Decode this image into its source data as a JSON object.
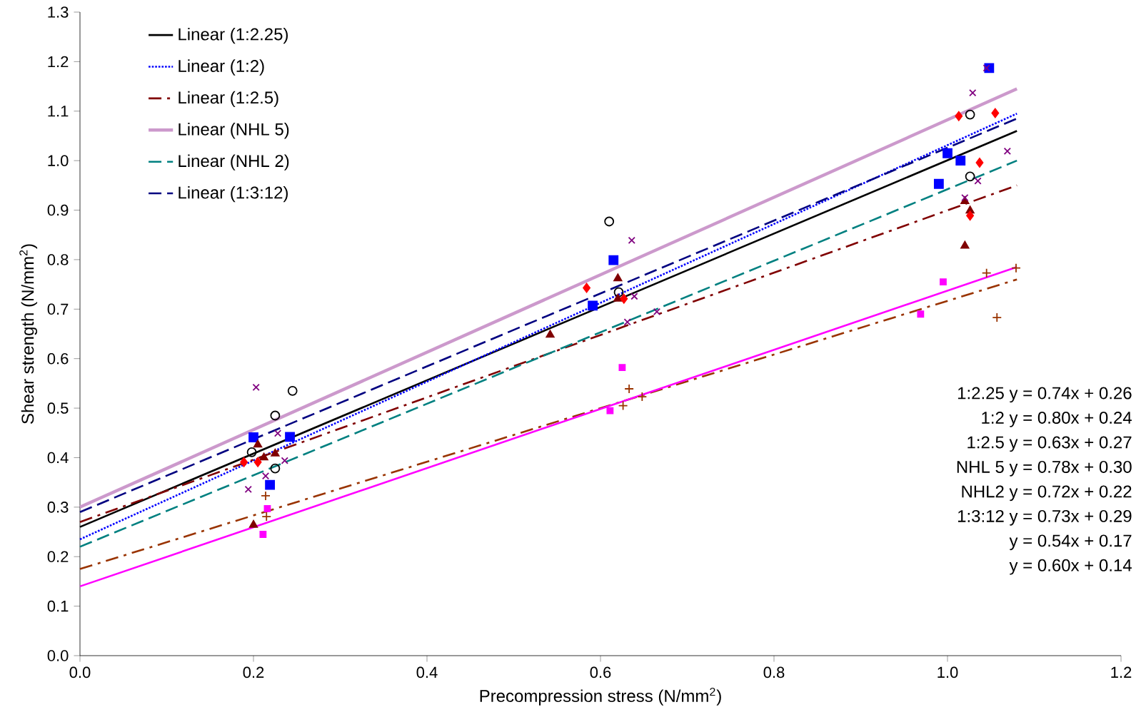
{
  "chart_data": {
    "type": "scatter",
    "xlabel": "Precompression stress (N/mm$^{2}$)",
    "ylabel": "Shear strength (N/mm$^{2}$)",
    "xlim": [
      0,
      1.2
    ],
    "ylim": [
      0,
      1.3
    ],
    "xticks": [
      {
        "value": 0,
        "label": "0.0"
      },
      0.2,
      0.4,
      0.6,
      0.8,
      {
        "value": 1,
        "label": "1.0"
      },
      1.2
    ],
    "yticks": [
      {
        "value": 0,
        "label": "0.0"
      },
      0.1,
      0.2,
      0.3,
      0.4,
      0.5,
      0.6,
      0.7,
      0.8,
      0.9,
      {
        "value": 1,
        "label": "1.0"
      },
      1.1,
      1.2,
      1.3
    ],
    "grid": false,
    "legend": "top left",
    "series": [
      {
        "type": "scatter",
        "color": "#000000",
        "marker": "circle",
        "x": [
          0.198,
          0.245,
          0.225,
          0.225,
          0.61,
          0.621,
          1.026,
          1.026
        ],
        "values": [
          0.411,
          0.535,
          0.485,
          0.378,
          0.877,
          0.734,
          1.093,
          0.968
        ]
      },
      {
        "type": "scatter",
        "color": "#0000ff",
        "marker": "square",
        "x": [
          0.2,
          0.242,
          0.219,
          0.615,
          0.591,
          0.99,
          1.0,
          1.015,
          1.048
        ],
        "values": [
          0.441,
          0.442,
          0.345,
          0.799,
          0.707,
          0.953,
          1.015,
          1.0,
          1.187
        ]
      },
      {
        "type": "scatter",
        "color": "#800000",
        "marker": "triangle",
        "x": [
          0.205,
          0.225,
          0.212,
          0.2,
          0.542,
          0.62,
          0.62,
          1.02,
          1.02,
          1.026
        ],
        "values": [
          0.426,
          0.408,
          0.4,
          0.264,
          0.648,
          0.762,
          0.721,
          0.918,
          0.828,
          0.899
        ]
      },
      {
        "type": "scatter",
        "color": "#ff0000",
        "marker": "diamond",
        "x": [
          0.189,
          0.205,
          0.584,
          0.627,
          1.013,
          1.055,
          1.037,
          1.026
        ],
        "values": [
          0.391,
          0.391,
          0.743,
          0.721,
          1.09,
          1.096,
          0.996,
          0.889
        ]
      },
      {
        "type": "scatter",
        "color": "#800080",
        "marker": "cross",
        "x": [
          0.203,
          0.228,
          0.636,
          0.639,
          1.029,
          1.045
        ],
        "values": [
          0.542,
          0.449,
          0.839,
          0.726,
          1.137,
          1.187
        ]
      },
      {
        "type": "scatter",
        "color": "#800080",
        "marker": "cross",
        "x": [
          0.194,
          0.214,
          0.236,
          0.631,
          0.665,
          1.035,
          1.02,
          1.069
        ],
        "values": [
          0.336,
          0.363,
          0.394,
          0.674,
          0.695,
          0.959,
          0.925,
          1.019
        ]
      },
      {
        "type": "scatter",
        "color": "#993300",
        "marker": "plus",
        "x": [
          0.214,
          0.215,
          0.626,
          0.633,
          0.648,
          1.045,
          1.057,
          1.079
        ],
        "values": [
          0.323,
          0.281,
          0.505,
          0.539,
          0.523,
          0.773,
          0.683,
          0.783
        ]
      },
      {
        "type": "scatter",
        "color": "#ff00ff",
        "marker": "square",
        "x": [
          0.211,
          0.216,
          0.625,
          0.611,
          0.995,
          0.969
        ],
        "values": [
          0.245,
          0.297,
          0.582,
          0.495,
          0.755,
          0.69
        ]
      },
      {
        "type": "line",
        "name": "Linear (1:2.25)",
        "color": "#000000",
        "line_style": "solid",
        "x": [
          0,
          1.08
        ],
        "values": [
          0.26,
          1.06
        ]
      },
      {
        "type": "line",
        "name": "Linear (1:2)",
        "color": "#0000ff",
        "line_style": "dotted",
        "x": [
          0,
          1.08
        ],
        "values": [
          0.235,
          1.095
        ]
      },
      {
        "type": "line",
        "name": "Linear (1:2.5)",
        "color": "#800000",
        "line_style": "dashdot",
        "x": [
          0,
          1.08
        ],
        "values": [
          0.27,
          0.95
        ]
      },
      {
        "type": "line",
        "name": "Linear (NHL 5)",
        "color": "#cc99cc",
        "line_style": "solid",
        "x": [
          0,
          1.08
        ],
        "values": [
          0.3,
          1.145
        ]
      },
      {
        "type": "line",
        "name": "Linear (NHL 2)",
        "color": "#008080",
        "line_style": "dashed",
        "x": [
          0,
          1.08
        ],
        "values": [
          0.22,
          1.0
        ]
      },
      {
        "type": "line",
        "name": "Linear (1:3:12)",
        "color": "#000080",
        "line_style": "dashed",
        "x": [
          0,
          1.08
        ],
        "values": [
          0.29,
          1.085
        ]
      },
      {
        "type": "line",
        "color": "#993300",
        "line_style": "dashdot",
        "x": [
          0,
          1.08
        ],
        "values": [
          0.175,
          0.76
        ]
      },
      {
        "type": "line",
        "color": "#ff00ff",
        "line_style": "solid",
        "x": [
          0,
          1.08
        ],
        "values": [
          0.14,
          0.785
        ]
      }
    ],
    "annotations": [
      "1:2.25   y = 0.74x + 0.26",
      "1:2   y = 0.80x + 0.24",
      "1:2.5   y = 0.63x + 0.27",
      "NHL 5   y = 0.78x + 0.30",
      "NHL2   y = 0.72x + 0.22",
      "1:3:12   y = 0.73x + 0.29",
      "y = 0.54x + 0.17",
      "y = 0.60x + 0.14"
    ]
  }
}
